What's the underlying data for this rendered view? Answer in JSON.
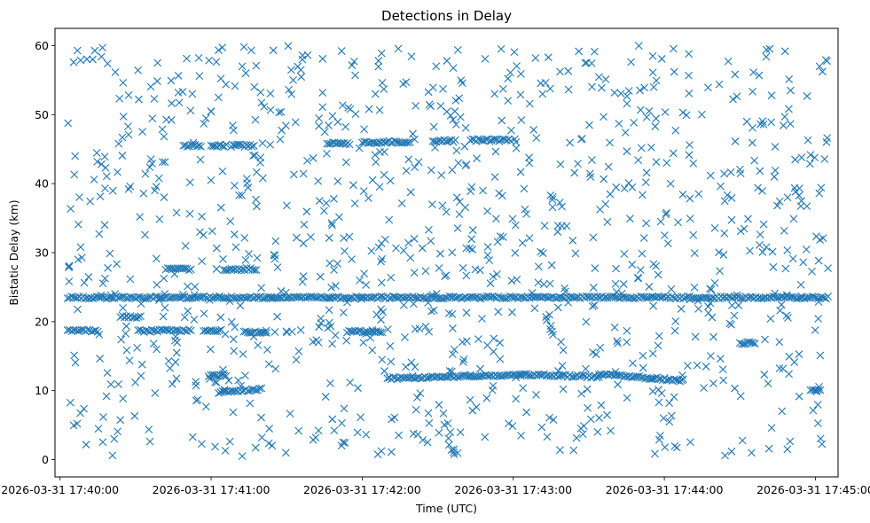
{
  "chart_data": {
    "type": "scatter",
    "title": "Detections in Delay",
    "xlabel": "Time (UTC)",
    "ylabel": "Bistatic Delay (km)",
    "marker": "x",
    "color": "#1f77b4",
    "xlim": [
      "2026-03-31 17:39:58",
      "2026-03-31 17:45:09"
    ],
    "ylim": [
      -2.5,
      62.5
    ],
    "x_ticks": [
      "2026-03-31 17:40:00",
      "2026-03-31 17:41:00",
      "2026-03-31 17:42:00",
      "2026-03-31 17:43:00",
      "2026-03-31 17:44:00",
      "2026-03-31 17:45:00"
    ],
    "y_ticks": [
      0,
      10,
      20,
      30,
      40,
      50,
      60
    ],
    "grid": false,
    "time_range": [
      "2026-03-31 17:40:03",
      "2026-03-31 17:45:05"
    ],
    "delay_range": [
      0.5,
      60
    ],
    "tracks": [
      {
        "start": "2026-03-31 17:40:03",
        "end": "2026-03-31 17:45:05",
        "delay_start": 23.5,
        "delay_end": 23.5
      },
      {
        "start": "2026-03-31 17:40:03",
        "end": "2026-03-31 17:40:15",
        "delay_start": 18.7,
        "delay_end": 18.7
      },
      {
        "start": "2026-03-31 17:40:24",
        "end": "2026-03-31 17:40:32",
        "delay_start": 20.7,
        "delay_end": 20.7
      },
      {
        "start": "2026-03-31 17:40:31",
        "end": "2026-03-31 17:40:52",
        "delay_start": 18.7,
        "delay_end": 18.7
      },
      {
        "start": "2026-03-31 17:40:42",
        "end": "2026-03-31 17:40:52",
        "delay_start": 27.6,
        "delay_end": 27.6
      },
      {
        "start": "2026-03-31 17:40:49",
        "end": "2026-03-31 17:40:56",
        "delay_start": 45.5,
        "delay_end": 45.5
      },
      {
        "start": "2026-03-31 17:40:57",
        "end": "2026-03-31 17:41:04",
        "delay_start": 18.7,
        "delay_end": 18.7
      },
      {
        "start": "2026-03-31 17:40:59",
        "end": "2026-03-31 17:41:06",
        "delay_start": 12.2,
        "delay_end": 12.2
      },
      {
        "start": "2026-03-31 17:41:00",
        "end": "2026-03-31 17:41:06",
        "delay_start": 45.5,
        "delay_end": 45.5
      },
      {
        "start": "2026-03-31 17:41:05",
        "end": "2026-03-31 17:41:18",
        "delay_start": 27.6,
        "delay_end": 27.6
      },
      {
        "start": "2026-03-31 17:41:08",
        "end": "2026-03-31 17:41:17",
        "delay_start": 45.5,
        "delay_end": 45.5
      },
      {
        "start": "2026-03-31 17:41:13",
        "end": "2026-03-31 17:41:22",
        "delay_start": 18.5,
        "delay_end": 18.5
      },
      {
        "start": "2026-03-31 17:41:03",
        "end": "2026-03-31 17:41:20",
        "delay_start": 9.8,
        "delay_end": 10.2
      },
      {
        "start": "2026-03-31 17:41:46",
        "end": "2026-03-31 17:41:55",
        "delay_start": 45.8,
        "delay_end": 45.8
      },
      {
        "start": "2026-03-31 17:41:54",
        "end": "2026-03-31 17:42:08",
        "delay_start": 18.5,
        "delay_end": 18.5
      },
      {
        "start": "2026-03-31 17:42:00",
        "end": "2026-03-31 17:42:19",
        "delay_start": 46.0,
        "delay_end": 46.0
      },
      {
        "start": "2026-03-31 17:42:10",
        "end": "2026-03-31 17:43:03",
        "delay_start": 11.8,
        "delay_end": 12.3
      },
      {
        "start": "2026-03-31 17:42:28",
        "end": "2026-03-31 17:42:37",
        "delay_start": 46.2,
        "delay_end": 46.2
      },
      {
        "start": "2026-03-31 17:42:43",
        "end": "2026-03-31 17:42:59",
        "delay_start": 46.3,
        "delay_end": 46.3
      },
      {
        "start": "2026-03-31 17:43:03",
        "end": "2026-03-31 17:43:34",
        "delay_start": 12.3,
        "delay_end": 12.0
      },
      {
        "start": "2026-03-31 17:43:34",
        "end": "2026-03-31 17:44:07",
        "delay_start": 12.4,
        "delay_end": 11.5
      },
      {
        "start": "2026-03-31 17:44:30",
        "end": "2026-03-31 17:44:36",
        "delay_start": 16.9,
        "delay_end": 16.9
      },
      {
        "start": "2026-03-31 17:44:58",
        "end": "2026-03-31 17:45:02",
        "delay_start": 10.0,
        "delay_end": 10.0
      }
    ]
  }
}
